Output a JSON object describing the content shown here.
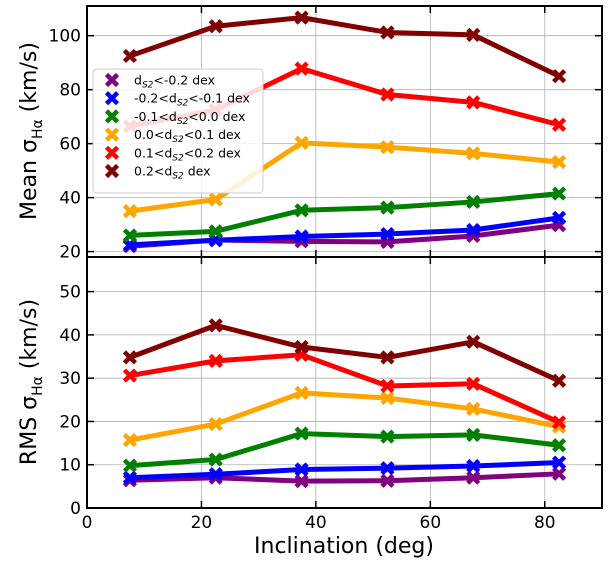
{
  "chart_data": [
    {
      "type": "line",
      "title": "",
      "ylabel": "Mean σ_Hα (km/s)",
      "ylabel_prefix": "Mean σ",
      "ylabel_sub": "Hα",
      "ylabel_suffix": " (km/s)",
      "xlim": [
        0,
        90
      ],
      "ylim": [
        18,
        111
      ],
      "xticks": [
        0,
        20,
        40,
        60,
        80
      ],
      "yticks": [
        20,
        40,
        60,
        80,
        100
      ],
      "ytick_labels": [
        "20",
        "40",
        "60",
        "80",
        "100"
      ],
      "grid": true,
      "legend_position": "upper-left",
      "x": [
        7.5,
        22.5,
        37.5,
        52.5,
        67.5,
        82.5
      ],
      "series": [
        {
          "name": "d_S2<-0.2 dex",
          "label_parts": [
            "d",
            "S2",
            "<-0.2 dex"
          ],
          "color": "#800080",
          "values": [
            22,
            24.3,
            23.8,
            23.6,
            25.8,
            29.8
          ]
        },
        {
          "name": "-0.2<d_S2<-0.1 dex",
          "label_parts": [
            "-0.2<d",
            "S2",
            "<-0.1 dex"
          ],
          "color": "#0000ff",
          "values": [
            22.5,
            24.2,
            25.6,
            26.5,
            28,
            32.5
          ]
        },
        {
          "name": "-0.1<d_S2<0.0 dex",
          "label_parts": [
            "-0.1<d",
            "S2",
            "<0.0 dex"
          ],
          "color": "#008000",
          "values": [
            26,
            27.5,
            35.3,
            36.3,
            38.4,
            41.5
          ]
        },
        {
          "name": "0.0<d_S2<0.1 dex",
          "label_parts": [
            "0.0<d",
            "S2",
            "<0.1 dex"
          ],
          "color": "#ffa500",
          "values": [
            35,
            39.3,
            60.3,
            58.7,
            56.4,
            53.2
          ]
        },
        {
          "name": "0.1<d_S2<0.2 dex",
          "label_parts": [
            "0.1<d",
            "S2",
            "<0.2 dex"
          ],
          "color": "#ff0000",
          "values": [
            66.5,
            72.5,
            87.8,
            78.2,
            75.3,
            67
          ]
        },
        {
          "name": "0.2<d_S2 dex",
          "label_parts": [
            "0.2<d",
            "S2",
            " dex"
          ],
          "color": "#800000",
          "values": [
            92.5,
            103.5,
            106.7,
            101.2,
            100.3,
            85
          ]
        }
      ]
    },
    {
      "type": "line",
      "title": "",
      "xlabel": "Inclination (deg)",
      "ylabel": "RMS σ_Hα (km/s)",
      "ylabel_prefix": "RMS σ",
      "ylabel_sub": "Hα",
      "ylabel_suffix": " (km/s)",
      "xlim": [
        0,
        90
      ],
      "ylim": [
        0,
        58
      ],
      "xticks": [
        0,
        20,
        40,
        60,
        80
      ],
      "xtick_labels": [
        "0",
        "20",
        "40",
        "60",
        "80"
      ],
      "yticks": [
        0,
        10,
        20,
        30,
        40,
        50
      ],
      "ytick_labels": [
        "0",
        "10",
        "20",
        "30",
        "40",
        "50"
      ],
      "grid": true,
      "x": [
        7.5,
        22.5,
        37.5,
        52.5,
        67.5,
        82.5
      ],
      "series": [
        {
          "color": "#800080",
          "values": [
            6.4,
            7,
            6.2,
            6.3,
            7,
            7.9
          ]
        },
        {
          "color": "#0000ff",
          "values": [
            7,
            7.8,
            8.9,
            9.2,
            9.7,
            10.5
          ]
        },
        {
          "color": "#008000",
          "values": [
            9.8,
            11.2,
            17.2,
            16.5,
            16.9,
            14.5
          ]
        },
        {
          "color": "#ffa500",
          "values": [
            15.7,
            19.4,
            26.6,
            25.4,
            22.9,
            18.8
          ]
        },
        {
          "color": "#ff0000",
          "values": [
            30.6,
            34,
            35.4,
            28.2,
            28.7,
            19.8
          ]
        },
        {
          "color": "#800000",
          "values": [
            34.8,
            42.2,
            37.2,
            34.8,
            38.4,
            29.4
          ]
        }
      ]
    }
  ]
}
